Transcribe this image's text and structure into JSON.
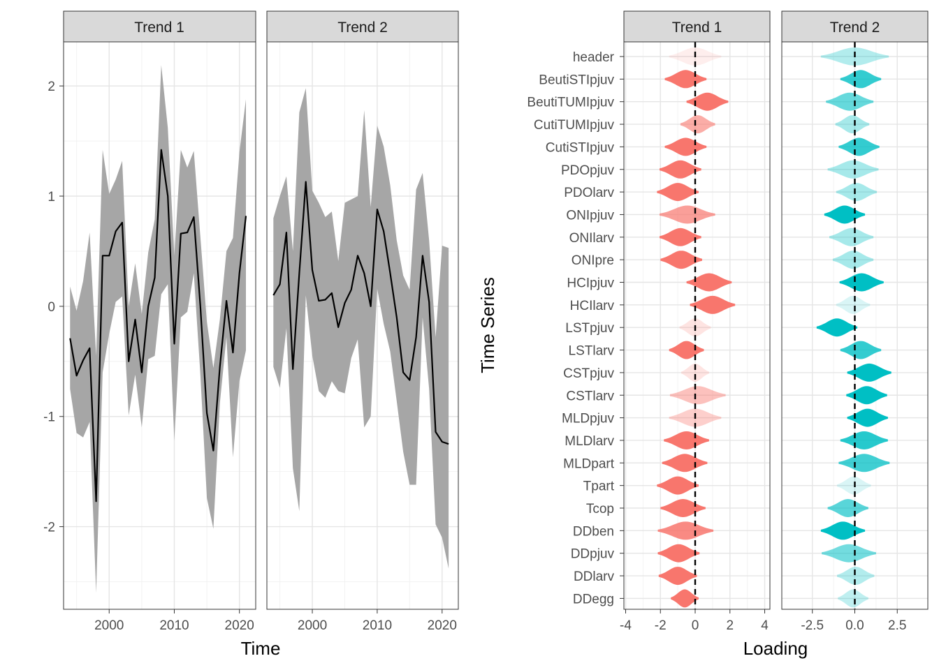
{
  "chart_data": [
    {
      "type": "line",
      "xlabel": "Time",
      "ylabel": "",
      "ylim": [
        -2.75,
        2.4
      ],
      "xlim": [
        1993,
        2022.5
      ],
      "x_ticks": [
        "2000",
        "2010",
        "2020"
      ],
      "y_ticks": [
        "-2",
        "-1",
        "0",
        "1",
        "2"
      ],
      "grid": true,
      "panels": [
        {
          "strip": "Trend 1",
          "x": [
            1994,
            1995,
            1996,
            1997,
            1998,
            1999,
            2000,
            2001,
            2002,
            2003,
            2004,
            2005,
            2006,
            2007,
            2008,
            2009,
            2010,
            2011,
            2012,
            2013,
            2014,
            2015,
            2016,
            2017,
            2018,
            2019,
            2020,
            2021
          ],
          "mean": [
            -0.29,
            -0.63,
            -0.49,
            -0.38,
            -1.77,
            0.46,
            0.46,
            0.68,
            0.76,
            -0.5,
            -0.12,
            -0.6,
            0.0,
            0.26,
            1.42,
            1.0,
            -0.34,
            0.66,
            0.67,
            0.81,
            0.0,
            -0.97,
            -1.31,
            -0.55,
            0.05,
            -0.42,
            0.3,
            0.82
          ],
          "lower": [
            -0.75,
            -1.15,
            -1.19,
            -1.05,
            -2.6,
            -0.6,
            -0.25,
            0.04,
            0.09,
            -0.99,
            -0.62,
            -1.1,
            -0.48,
            -0.45,
            0.11,
            0.2,
            -1.22,
            -0.1,
            -0.05,
            0.3,
            -0.62,
            -1.74,
            -2.02,
            -0.88,
            -0.28,
            -1.37,
            -0.68,
            -0.4
          ],
          "upper": [
            0.18,
            -0.04,
            0.23,
            0.67,
            -0.45,
            1.42,
            1.02,
            1.15,
            1.32,
            0.0,
            0.39,
            -0.07,
            0.49,
            0.79,
            2.19,
            1.62,
            0.46,
            1.42,
            1.26,
            1.41,
            0.63,
            -0.14,
            -0.56,
            -0.12,
            0.5,
            0.62,
            1.4,
            1.88
          ]
        },
        {
          "strip": "Trend 2",
          "x": [
            1994,
            1995,
            1996,
            1997,
            1998,
            1999,
            2000,
            2001,
            2002,
            2003,
            2004,
            2005,
            2006,
            2007,
            2008,
            2009,
            2010,
            2011,
            2012,
            2013,
            2014,
            2015,
            2016,
            2017,
            2018,
            2019,
            2020,
            2021
          ],
          "mean": [
            0.1,
            0.2,
            0.67,
            -0.57,
            0.3,
            1.13,
            0.33,
            0.05,
            0.06,
            0.12,
            -0.19,
            0.03,
            0.15,
            0.46,
            0.3,
            0.0,
            0.88,
            0.68,
            0.3,
            -0.1,
            -0.6,
            -0.67,
            -0.28,
            0.46,
            0.04,
            -1.14,
            -1.23,
            -1.25
          ],
          "lower": [
            -0.55,
            -0.74,
            -0.2,
            -1.47,
            -1.86,
            0.1,
            -0.45,
            -0.77,
            -0.83,
            -0.68,
            -0.77,
            -0.79,
            -0.47,
            -0.3,
            -1.1,
            -1.0,
            0.16,
            -0.16,
            -0.41,
            -0.86,
            -1.32,
            -1.62,
            -1.62,
            -0.1,
            -0.75,
            -1.98,
            -2.1,
            -2.38
          ],
          "upper": [
            0.8,
            1.0,
            1.18,
            0.5,
            1.76,
            1.98,
            1.05,
            0.94,
            0.81,
            0.86,
            0.41,
            0.94,
            0.97,
            1.0,
            1.78,
            0.9,
            1.64,
            1.45,
            1.1,
            0.6,
            0.28,
            0.15,
            1.06,
            1.21,
            0.6,
            -0.28,
            0.55,
            0.53
          ]
        }
      ]
    },
    {
      "type": "violin",
      "xlabel": "Loading",
      "ylabel": "Time Series",
      "zero_line": "dashed",
      "grid": true,
      "categories": [
        "header",
        "BeutiSTIpjuv",
        "BeutiTUMIpjuv",
        "CutiTUMIpjuv",
        "CutiSTIpjuv",
        "PDOpjuv",
        "PDOlarv",
        "ONIpjuv",
        "ONIlarv",
        "ONIpre",
        "HCIpjuv",
        "HCIlarv",
        "LSTpjuv",
        "LSTlarv",
        "CSTpjuv",
        "CSTlarv",
        "MLDpjuv",
        "MLDlarv",
        "MLDpart",
        "Tpart",
        "Tcop",
        "DDben",
        "DDpjuv",
        "DDlarv",
        "DDegg"
      ],
      "panels": [
        {
          "strip": "Trend 1",
          "color": "#F8766D",
          "xlim": [
            -4.1,
            4.3
          ],
          "x_ticks": [
            "-4",
            "-2",
            "0",
            "2",
            "4"
          ],
          "medians": [
            0.0,
            -0.55,
            0.7,
            0.15,
            -0.55,
            -0.85,
            -1.0,
            -0.45,
            -0.85,
            -0.8,
            0.8,
            1.0,
            0.0,
            -0.5,
            0.0,
            0.15,
            0.0,
            -0.5,
            -0.6,
            -1.0,
            -0.7,
            -0.55,
            -0.95,
            -1.0,
            -0.6
          ],
          "widths": [
            1.5,
            1.2,
            1.2,
            1.0,
            1.2,
            1.2,
            1.2,
            1.6,
            1.2,
            1.2,
            1.3,
            1.3,
            0.9,
            1.0,
            0.8,
            1.6,
            1.5,
            1.3,
            1.3,
            1.2,
            1.3,
            1.6,
            1.2,
            1.1,
            0.8
          ],
          "alphas": [
            0.12,
            1.0,
            1.0,
            0.6,
            1.0,
            1.0,
            1.0,
            0.7,
            1.0,
            1.0,
            1.0,
            1.0,
            0.2,
            1.0,
            0.2,
            0.45,
            0.35,
            1.0,
            1.0,
            1.0,
            1.0,
            0.85,
            1.0,
            1.0,
            1.0
          ]
        },
        {
          "strip": "Trend 2",
          "color": "#00BFC4",
          "xlim": [
            -4.3,
            4.3
          ],
          "x_ticks": [
            "-2.5",
            "0.0",
            "2.5"
          ],
          "medians": [
            0.0,
            0.35,
            -0.3,
            -0.15,
            0.25,
            -0.1,
            0.1,
            -0.6,
            -0.2,
            -0.1,
            0.4,
            -0.1,
            -1.05,
            0.35,
            0.85,
            0.7,
            0.75,
            0.55,
            0.55,
            -0.05,
            -0.4,
            -0.7,
            -0.35,
            0.05,
            -0.1
          ],
          "widths": [
            2.0,
            1.2,
            1.4,
            1.0,
            1.2,
            1.5,
            1.2,
            1.2,
            1.3,
            1.2,
            1.3,
            1.0,
            1.2,
            1.2,
            1.3,
            1.2,
            1.2,
            1.4,
            1.5,
            1.0,
            1.2,
            1.3,
            1.6,
            1.1,
            0.9
          ],
          "alphas": [
            0.3,
            0.8,
            0.6,
            0.35,
            0.8,
            0.35,
            0.35,
            1.0,
            0.35,
            0.35,
            1.0,
            0.15,
            1.0,
            0.8,
            1.0,
            1.0,
            1.0,
            0.85,
            0.75,
            0.15,
            0.65,
            1.0,
            0.55,
            0.3,
            0.25
          ]
        }
      ]
    }
  ]
}
